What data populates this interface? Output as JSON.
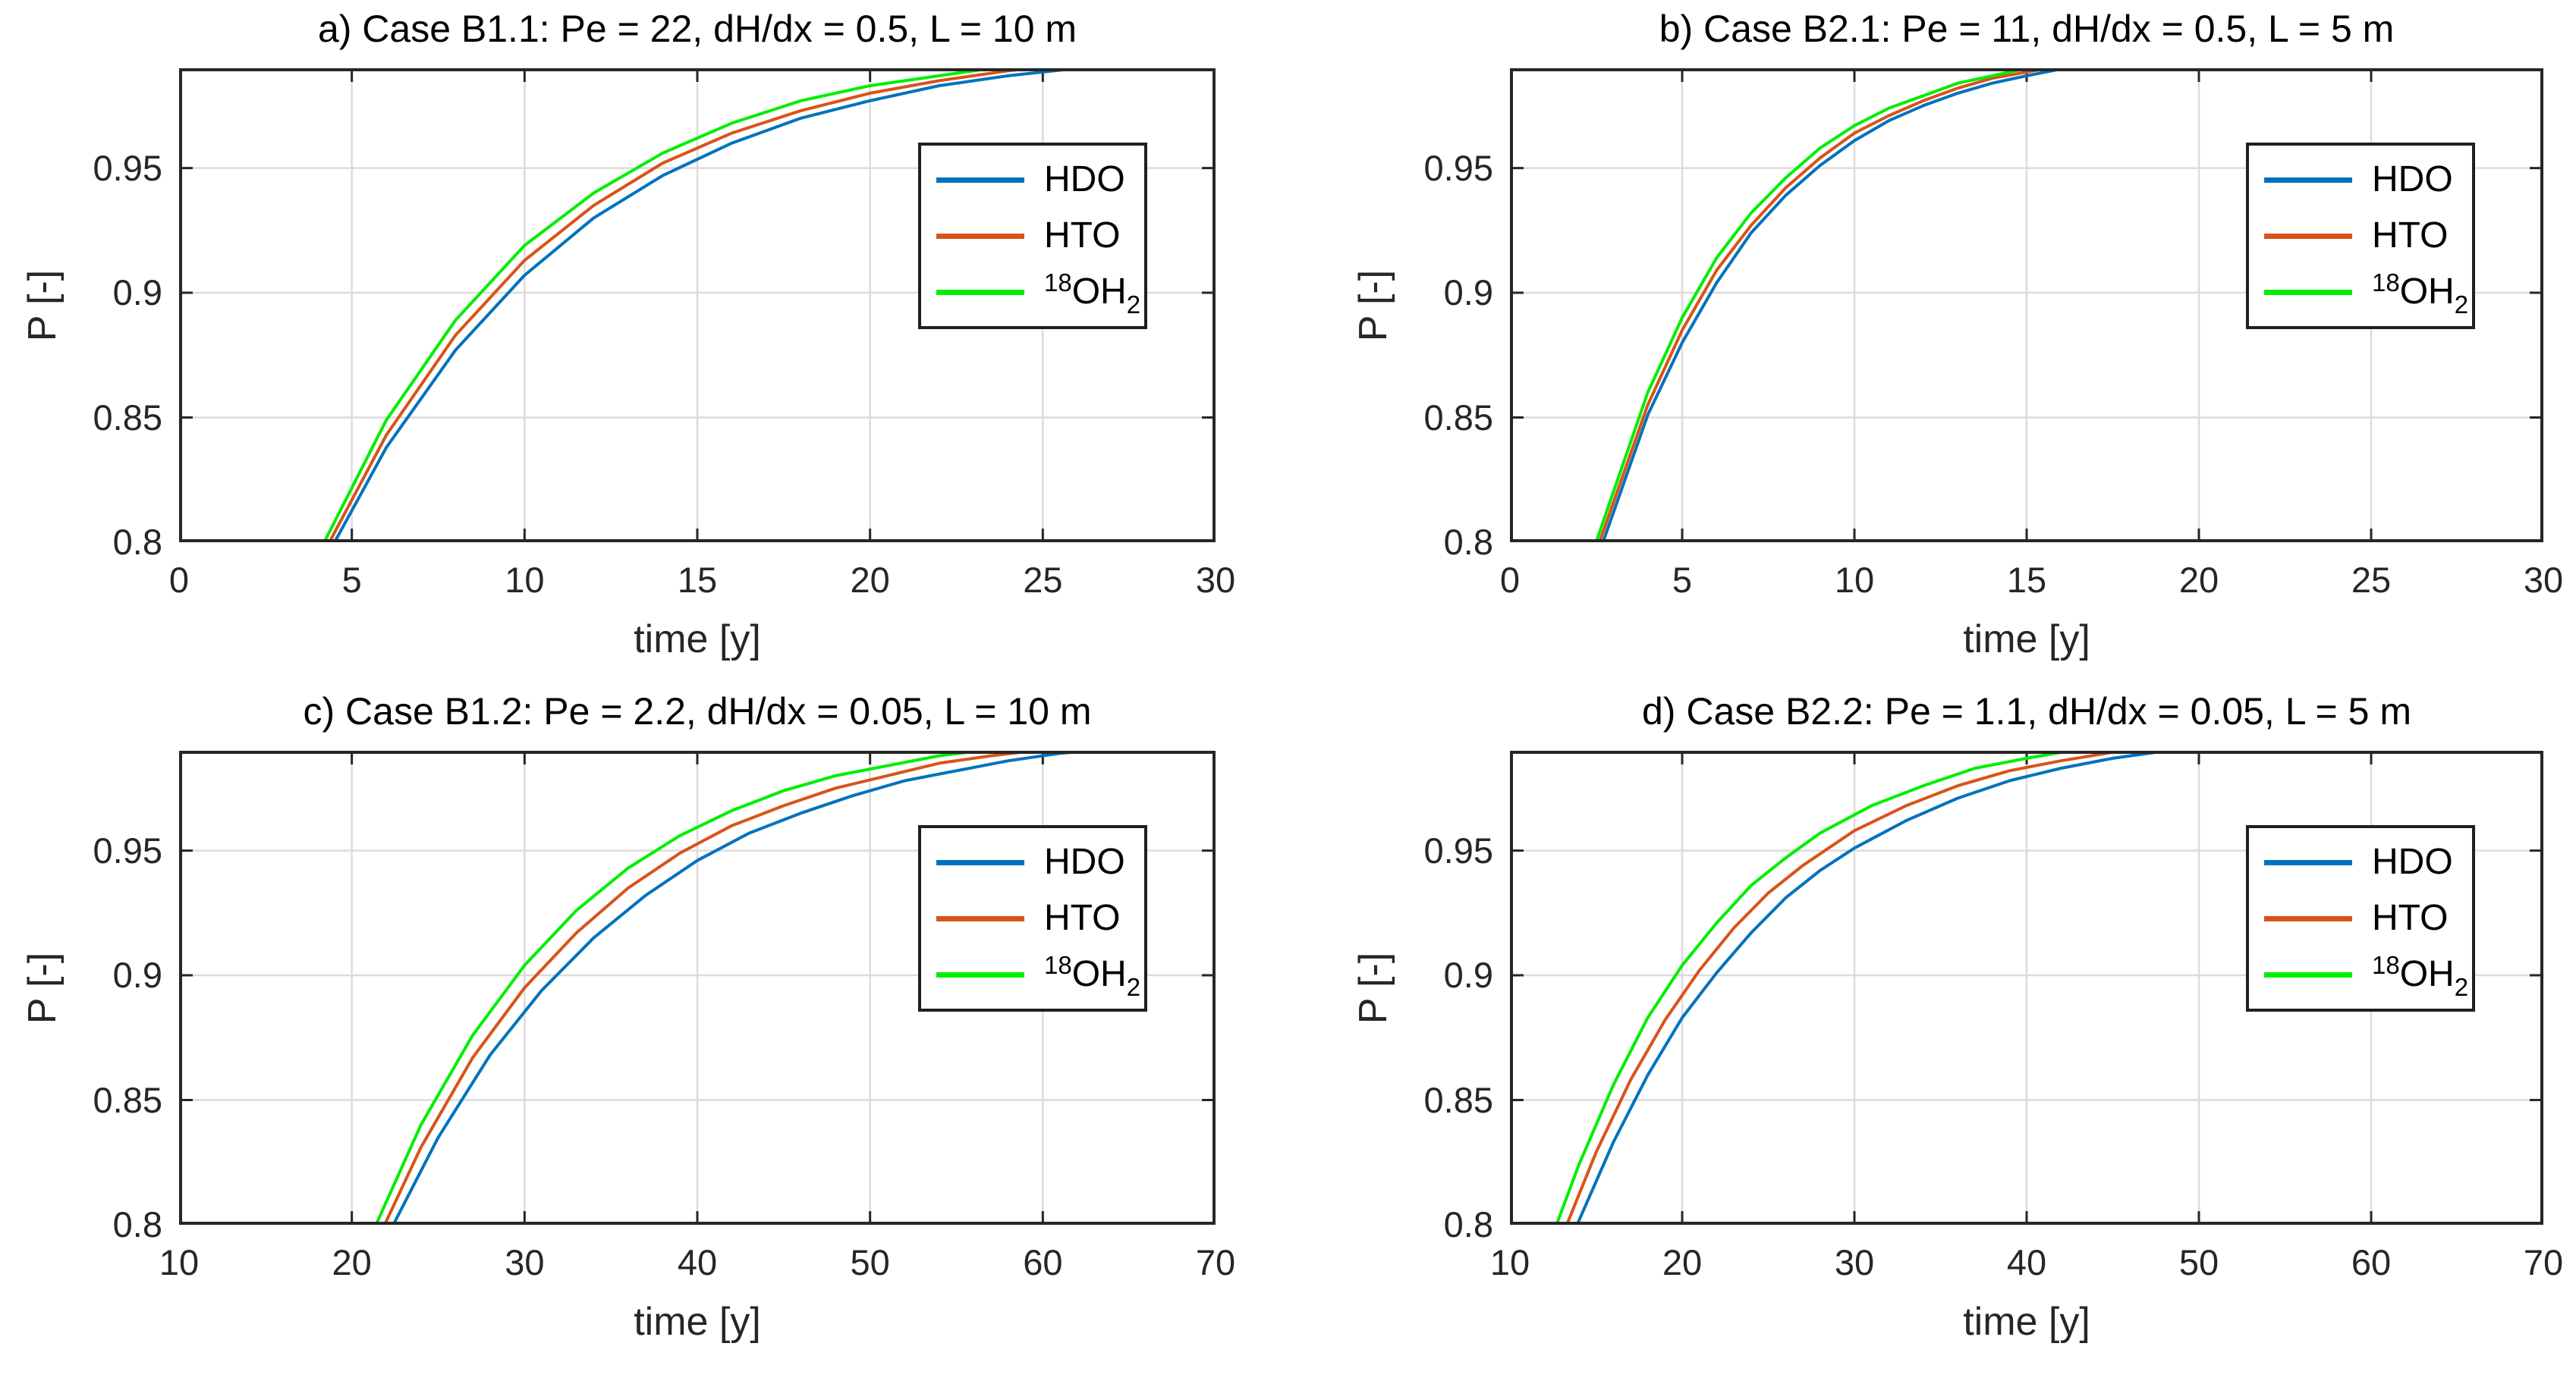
{
  "figure": {
    "colors": {
      "axis": "#262626",
      "grid": "#dcdcdc",
      "background": "#ffffff"
    }
  },
  "chart_data": [
    {
      "type": "line",
      "panel": "a",
      "title": "a) Case B1.1: Pe = 22, dH/dx = 0.5, L = 10 m",
      "xlabel": "time [y]",
      "ylabel": "P [-]",
      "xlim": [
        0,
        30
      ],
      "ylim": [
        0.8,
        0.99
      ],
      "xticks": [
        0,
        5,
        10,
        15,
        20,
        25,
        30
      ],
      "xticklabels": [
        "0",
        "5",
        "10",
        "15",
        "20",
        "25",
        "30"
      ],
      "yticks": [
        0.8,
        0.85,
        0.9,
        0.95
      ],
      "yticklabels": [
        "0.8",
        "0.85",
        "0.9",
        "0.95"
      ],
      "grid": true,
      "legend_location": "northeast",
      "series": [
        {
          "name": "HDO",
          "color": "#0072BD",
          "legend": {
            "base": "HDO"
          },
          "points": [
            [
              4.5,
              0.8
            ],
            [
              6,
              0.838
            ],
            [
              8,
              0.877
            ],
            [
              10,
              0.907
            ],
            [
              12,
              0.93
            ],
            [
              14,
              0.947
            ],
            [
              16,
              0.96
            ],
            [
              18,
              0.97
            ],
            [
              20,
              0.977
            ],
            [
              22,
              0.983
            ],
            [
              24,
              0.987
            ],
            [
              26,
              0.99
            ]
          ]
        },
        {
          "name": "HTO",
          "color": "#D95319",
          "legend": {
            "base": "HTO"
          },
          "points": [
            [
              4.35,
              0.8
            ],
            [
              6,
              0.843
            ],
            [
              8,
              0.883
            ],
            [
              10,
              0.913
            ],
            [
              12,
              0.935
            ],
            [
              14,
              0.952
            ],
            [
              16,
              0.964
            ],
            [
              18,
              0.973
            ],
            [
              20,
              0.98
            ],
            [
              22,
              0.985
            ],
            [
              24,
              0.989
            ],
            [
              24.7,
              0.99
            ]
          ]
        },
        {
          "name": "18OH2",
          "color": "#00EE00",
          "legend": {
            "sup": "18",
            "base": "OH",
            "sub": "2"
          },
          "points": [
            [
              4.2,
              0.8
            ],
            [
              6,
              0.849
            ],
            [
              8,
              0.889
            ],
            [
              10,
              0.919
            ],
            [
              12,
              0.94
            ],
            [
              14,
              0.956
            ],
            [
              16,
              0.968
            ],
            [
              18,
              0.977
            ],
            [
              20,
              0.983
            ],
            [
              22,
              0.987
            ],
            [
              23.5,
              0.99
            ]
          ]
        }
      ]
    },
    {
      "type": "line",
      "panel": "b",
      "title": "b) Case B2.1: Pe = 11, dH/dx = 0.5, L = 5 m",
      "xlabel": "time [y]",
      "ylabel": "P [-]",
      "xlim": [
        0,
        30
      ],
      "ylim": [
        0.8,
        0.99
      ],
      "xticks": [
        0,
        5,
        10,
        15,
        20,
        25,
        30
      ],
      "xticklabels": [
        "0",
        "5",
        "10",
        "15",
        "20",
        "25",
        "30"
      ],
      "yticks": [
        0.8,
        0.85,
        0.9,
        0.95
      ],
      "yticklabels": [
        "0.8",
        "0.85",
        "0.9",
        "0.95"
      ],
      "grid": true,
      "legend_location": "northeast",
      "series": [
        {
          "name": "HDO",
          "color": "#0072BD",
          "legend": {
            "base": "HDO"
          },
          "points": [
            [
              2.7,
              0.8
            ],
            [
              4,
              0.851
            ],
            [
              5,
              0.88
            ],
            [
              6,
              0.904
            ],
            [
              7,
              0.924
            ],
            [
              8,
              0.939
            ],
            [
              9,
              0.951
            ],
            [
              10,
              0.961
            ],
            [
              11,
              0.969
            ],
            [
              12,
              0.975
            ],
            [
              13,
              0.98
            ],
            [
              14,
              0.984
            ],
            [
              15,
              0.987
            ],
            [
              16.1,
              0.99
            ]
          ]
        },
        {
          "name": "HTO",
          "color": "#D95319",
          "legend": {
            "base": "HTO"
          },
          "points": [
            [
              2.6,
              0.8
            ],
            [
              4,
              0.855
            ],
            [
              5,
              0.885
            ],
            [
              6,
              0.909
            ],
            [
              7,
              0.927
            ],
            [
              8,
              0.942
            ],
            [
              9,
              0.954
            ],
            [
              10,
              0.964
            ],
            [
              11,
              0.971
            ],
            [
              12,
              0.977
            ],
            [
              13,
              0.982
            ],
            [
              14,
              0.986
            ],
            [
              15.6,
              0.99
            ]
          ]
        },
        {
          "name": "18OH2",
          "color": "#00EE00",
          "legend": {
            "sup": "18",
            "base": "OH",
            "sub": "2"
          },
          "points": [
            [
              2.5,
              0.8
            ],
            [
              4,
              0.86
            ],
            [
              5,
              0.89
            ],
            [
              6,
              0.914
            ],
            [
              7,
              0.932
            ],
            [
              8,
              0.946
            ],
            [
              9,
              0.958
            ],
            [
              10,
              0.967
            ],
            [
              11,
              0.974
            ],
            [
              12,
              0.979
            ],
            [
              13,
              0.984
            ],
            [
              14,
              0.987
            ],
            [
              15,
              0.99
            ]
          ]
        }
      ]
    },
    {
      "type": "line",
      "panel": "c",
      "title": "c) Case B1.2: Pe = 2.2, dH/dx = 0.05, L = 10 m",
      "xlabel": "time [y]",
      "ylabel": "P [-]",
      "xlim": [
        10,
        70
      ],
      "ylim": [
        0.8,
        0.99
      ],
      "xticks": [
        10,
        20,
        30,
        40,
        50,
        60,
        70
      ],
      "xticklabels": [
        "10",
        "20",
        "30",
        "40",
        "50",
        "60",
        "70"
      ],
      "yticks": [
        0.8,
        0.85,
        0.9,
        0.95
      ],
      "yticklabels": [
        "0.8",
        "0.85",
        "0.9",
        "0.95"
      ],
      "grid": true,
      "legend_location": "northeast",
      "series": [
        {
          "name": "HDO",
          "color": "#0072BD",
          "legend": {
            "base": "HDO"
          },
          "points": [
            [
              22.4,
              0.8
            ],
            [
              25,
              0.835
            ],
            [
              28,
              0.868
            ],
            [
              31,
              0.894
            ],
            [
              34,
              0.915
            ],
            [
              37,
              0.932
            ],
            [
              40,
              0.946
            ],
            [
              43,
              0.957
            ],
            [
              46,
              0.965
            ],
            [
              49,
              0.972
            ],
            [
              52,
              0.978
            ],
            [
              55,
              0.982
            ],
            [
              58,
              0.986
            ],
            [
              61,
              0.989
            ],
            [
              62.8,
              0.99
            ]
          ]
        },
        {
          "name": "HTO",
          "color": "#D95319",
          "legend": {
            "base": "HTO"
          },
          "points": [
            [
              21.9,
              0.8
            ],
            [
              24,
              0.831
            ],
            [
              27,
              0.867
            ],
            [
              30,
              0.895
            ],
            [
              33,
              0.917
            ],
            [
              36,
              0.935
            ],
            [
              39,
              0.949
            ],
            [
              42,
              0.96
            ],
            [
              45,
              0.968
            ],
            [
              48,
              0.975
            ],
            [
              51,
              0.98
            ],
            [
              54,
              0.985
            ],
            [
              57,
              0.988
            ],
            [
              59.4,
              0.99
            ]
          ]
        },
        {
          "name": "18OH2",
          "color": "#00EE00",
          "legend": {
            "sup": "18",
            "base": "OH",
            "sub": "2"
          },
          "points": [
            [
              21.4,
              0.8
            ],
            [
              24,
              0.84
            ],
            [
              27,
              0.876
            ],
            [
              30,
              0.904
            ],
            [
              33,
              0.926
            ],
            [
              36,
              0.943
            ],
            [
              39,
              0.956
            ],
            [
              42,
              0.966
            ],
            [
              45,
              0.974
            ],
            [
              48,
              0.98
            ],
            [
              51,
              0.984
            ],
            [
              54,
              0.988
            ],
            [
              56.3,
              0.99
            ]
          ]
        }
      ]
    },
    {
      "type": "line",
      "panel": "d",
      "title": "d) Case B2.2: Pe = 1.1, dH/dx = 0.05, L = 5 m",
      "xlabel": "time [y]",
      "ylabel": "P [-]",
      "xlim": [
        10,
        70
      ],
      "ylim": [
        0.8,
        0.99
      ],
      "xticks": [
        10,
        20,
        30,
        40,
        50,
        60,
        70
      ],
      "xticklabels": [
        "10",
        "20",
        "30",
        "40",
        "50",
        "60",
        "70"
      ],
      "yticks": [
        0.8,
        0.85,
        0.9,
        0.95
      ],
      "yticklabels": [
        "0.8",
        "0.85",
        "0.9",
        "0.95"
      ],
      "grid": true,
      "legend_location": "northeast",
      "series": [
        {
          "name": "HDO",
          "color": "#0072BD",
          "legend": {
            "base": "HDO"
          },
          "points": [
            [
              13.9,
              0.8
            ],
            [
              16,
              0.833
            ],
            [
              18,
              0.86
            ],
            [
              20,
              0.883
            ],
            [
              22,
              0.901
            ],
            [
              24,
              0.917
            ],
            [
              26,
              0.931
            ],
            [
              28,
              0.942
            ],
            [
              30,
              0.951
            ],
            [
              33,
              0.962
            ],
            [
              36,
              0.971
            ],
            [
              39,
              0.978
            ],
            [
              42,
              0.983
            ],
            [
              45,
              0.987
            ],
            [
              48.1,
              0.99
            ]
          ]
        },
        {
          "name": "HTO",
          "color": "#D95319",
          "legend": {
            "base": "HTO"
          },
          "points": [
            [
              13.3,
              0.8
            ],
            [
              15,
              0.829
            ],
            [
              17,
              0.858
            ],
            [
              19,
              0.882
            ],
            [
              21,
              0.902
            ],
            [
              23,
              0.919
            ],
            [
              25,
              0.933
            ],
            [
              27,
              0.944
            ],
            [
              30,
              0.958
            ],
            [
              33,
              0.968
            ],
            [
              36,
              0.976
            ],
            [
              39,
              0.982
            ],
            [
              42,
              0.986
            ],
            [
              45.5,
              0.99
            ]
          ]
        },
        {
          "name": "18OH2",
          "color": "#00EE00",
          "legend": {
            "sup": "18",
            "base": "OH",
            "sub": "2"
          },
          "points": [
            [
              12.7,
              0.8
            ],
            [
              14,
              0.824
            ],
            [
              16,
              0.856
            ],
            [
              18,
              0.883
            ],
            [
              20,
              0.904
            ],
            [
              22,
              0.921
            ],
            [
              24,
              0.936
            ],
            [
              26,
              0.947
            ],
            [
              28,
              0.957
            ],
            [
              31,
              0.968
            ],
            [
              34,
              0.976
            ],
            [
              37,
              0.983
            ],
            [
              40,
              0.987
            ],
            [
              42.5,
              0.99
            ]
          ]
        }
      ]
    }
  ]
}
